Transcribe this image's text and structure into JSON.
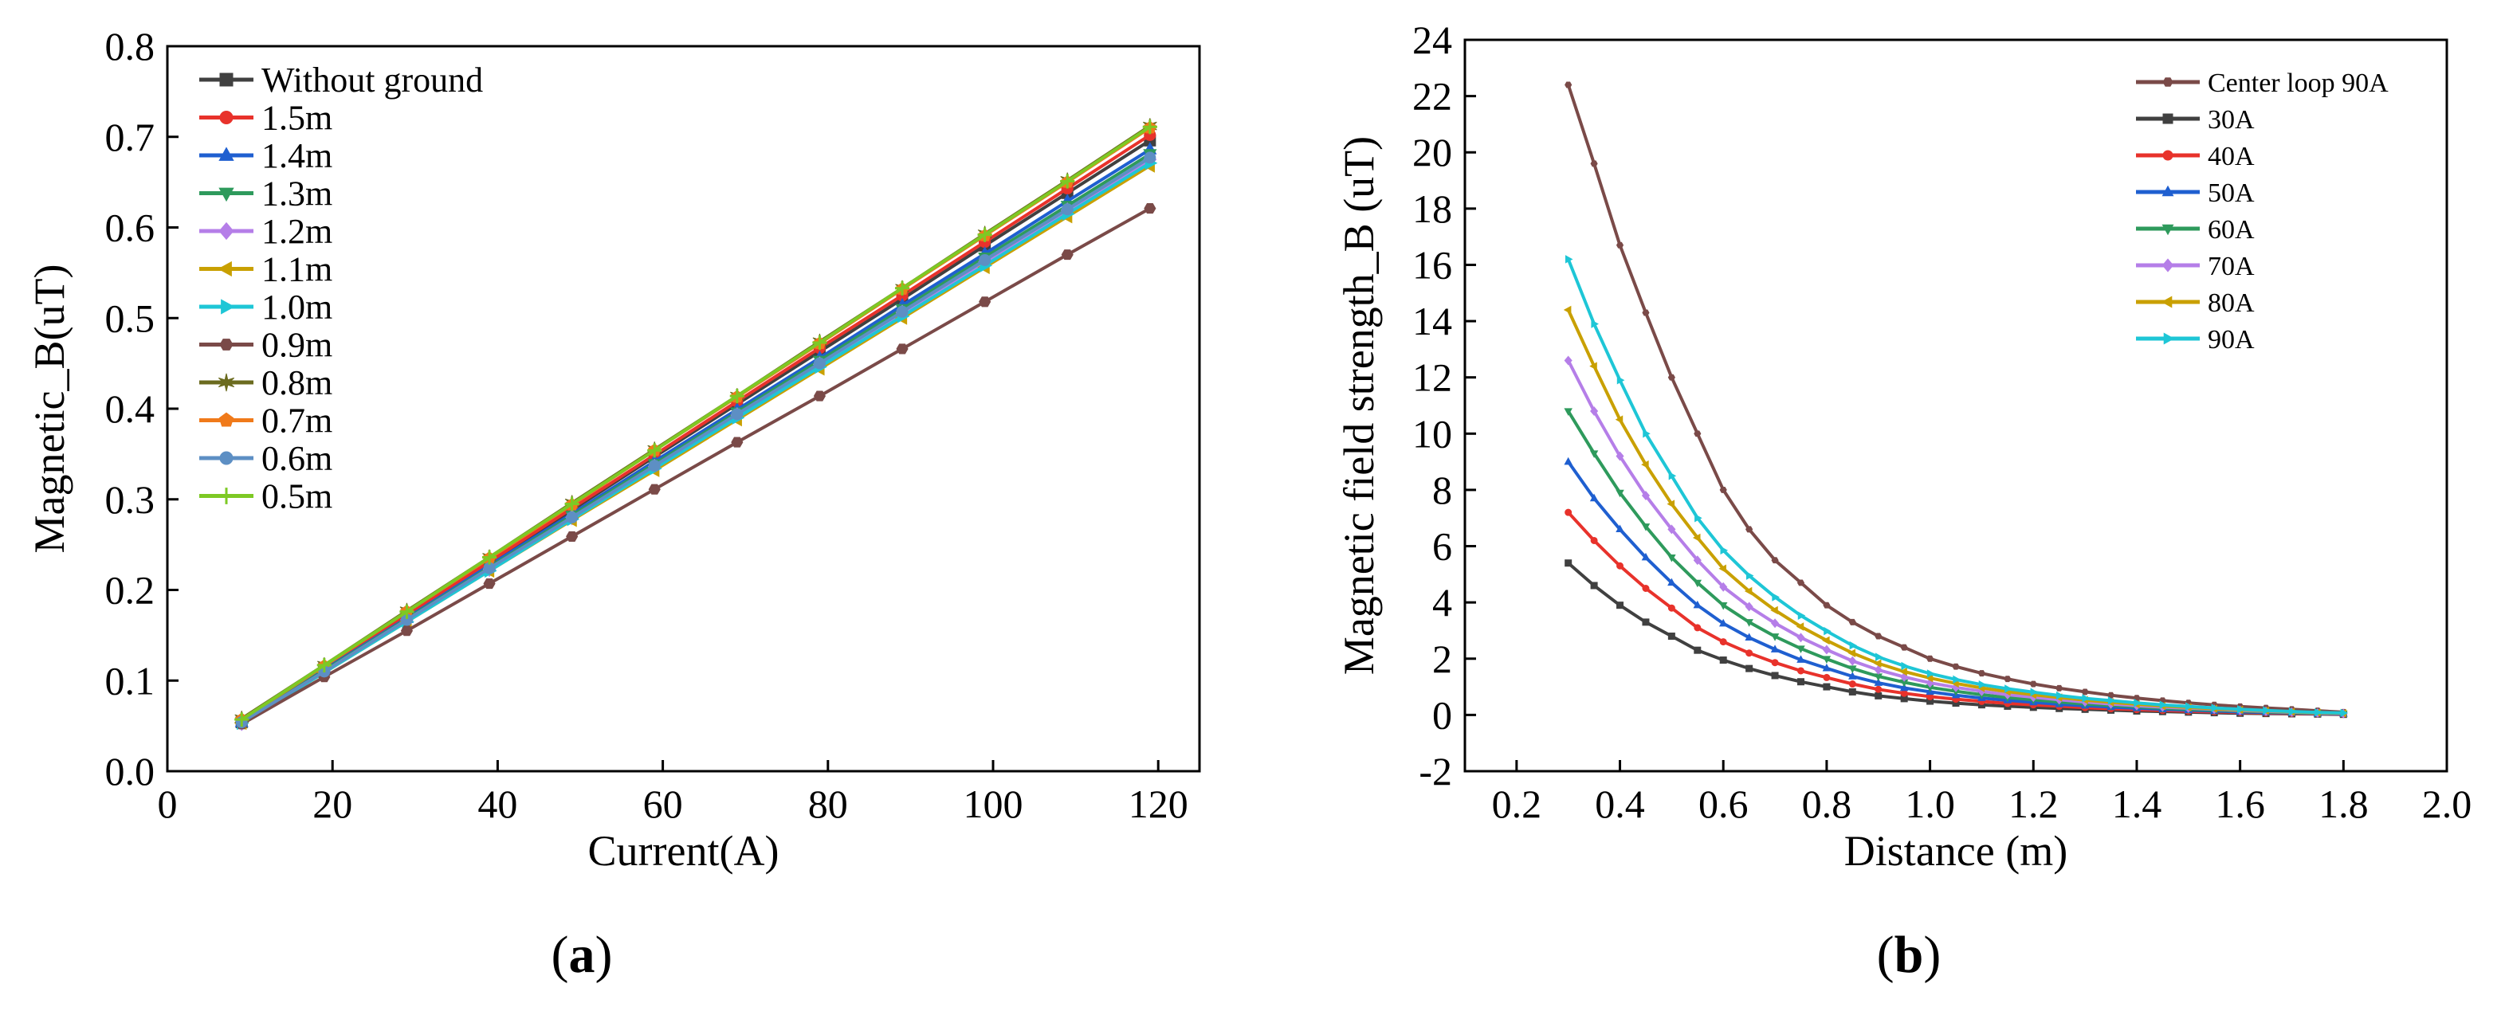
{
  "figure_labels": {
    "a": "a",
    "b": "b",
    "open_paren": "(",
    "close_paren": ")"
  },
  "chart_data": [
    {
      "type": "line",
      "panel": "a",
      "xlabel": "Current(A)",
      "ylabel": "Magnetic_B(uT)",
      "xlim": [
        0,
        125
      ],
      "ylim": [
        0,
        0.8
      ],
      "xticks": [
        0,
        20,
        40,
        60,
        80,
        100,
        120
      ],
      "yticks": [
        0.0,
        0.1,
        0.2,
        0.3,
        0.4,
        0.5,
        0.6,
        0.7,
        0.8
      ],
      "ytick_labels": [
        "0.0",
        "0.1",
        "0.2",
        "0.3",
        "0.4",
        "0.5",
        "0.6",
        "0.7",
        "0.8"
      ],
      "legend_position": "top-left",
      "x": [
        9,
        19,
        29,
        39,
        49,
        59,
        69,
        79,
        89,
        99,
        109,
        119
      ],
      "series": [
        {
          "name": "Without ground",
          "color": "#404040",
          "marker": "square",
          "values": [
            0.054,
            0.113,
            0.171,
            0.23,
            0.288,
            0.347,
            0.405,
            0.463,
            0.521,
            0.58,
            0.638,
            0.696
          ]
        },
        {
          "name": "1.5m",
          "color": "#e8322b",
          "marker": "circle",
          "values": [
            0.055,
            0.114,
            0.172,
            0.231,
            0.29,
            0.349,
            0.408,
            0.467,
            0.525,
            0.584,
            0.643,
            0.702
          ]
        },
        {
          "name": "1.4m",
          "color": "#1f5fd0",
          "marker": "triangle-up",
          "values": [
            0.054,
            0.112,
            0.169,
            0.227,
            0.284,
            0.342,
            0.399,
            0.456,
            0.514,
            0.571,
            0.629,
            0.686
          ]
        },
        {
          "name": "1.3m",
          "color": "#2e9a5c",
          "marker": "triangle-down",
          "values": [
            0.054,
            0.111,
            0.168,
            0.225,
            0.282,
            0.339,
            0.396,
            0.453,
            0.51,
            0.567,
            0.624,
            0.681
          ]
        },
        {
          "name": "1.2m",
          "color": "#b57ee8",
          "marker": "diamond",
          "values": [
            0.053,
            0.11,
            0.167,
            0.223,
            0.28,
            0.336,
            0.393,
            0.449,
            0.506,
            0.562,
            0.619,
            0.675
          ]
        },
        {
          "name": "1.1m",
          "color": "#c9a000",
          "marker": "triangle-left",
          "values": [
            0.053,
            0.109,
            0.165,
            0.221,
            0.277,
            0.332,
            0.388,
            0.444,
            0.5,
            0.556,
            0.612,
            0.668
          ]
        },
        {
          "name": "1.0m",
          "color": "#1ec6d6",
          "marker": "triangle-right",
          "values": [
            0.053,
            0.109,
            0.165,
            0.221,
            0.278,
            0.334,
            0.39,
            0.446,
            0.502,
            0.558,
            0.615,
            0.671
          ]
        },
        {
          "name": "0.9m",
          "color": "#7a4a48",
          "marker": "hexagon",
          "values": [
            0.052,
            0.104,
            0.155,
            0.207,
            0.259,
            0.311,
            0.363,
            0.414,
            0.466,
            0.518,
            0.57,
            0.621
          ]
        },
        {
          "name": "0.8m",
          "color": "#6b6b1f",
          "marker": "star",
          "values": [
            0.058,
            0.117,
            0.177,
            0.236,
            0.296,
            0.355,
            0.414,
            0.474,
            0.533,
            0.593,
            0.652,
            0.712
          ]
        },
        {
          "name": "0.7m",
          "color": "#f07a1a",
          "marker": "pentagon",
          "values": [
            0.057,
            0.116,
            0.176,
            0.235,
            0.294,
            0.354,
            0.413,
            0.472,
            0.532,
            0.591,
            0.65,
            0.71
          ]
        },
        {
          "name": "0.6m",
          "color": "#5d8fc4",
          "marker": "circle",
          "values": [
            0.054,
            0.11,
            0.167,
            0.224,
            0.28,
            0.337,
            0.394,
            0.45,
            0.507,
            0.564,
            0.62,
            0.677
          ]
        },
        {
          "name": "0.5m",
          "color": "#7dc924",
          "marker": "plus",
          "values": [
            0.057,
            0.117,
            0.176,
            0.236,
            0.295,
            0.354,
            0.414,
            0.473,
            0.533,
            0.592,
            0.651,
            0.711
          ]
        }
      ]
    },
    {
      "type": "line",
      "panel": "b",
      "xlabel": "Distance (m)",
      "ylabel": "Magnetic field strength_B (uT)",
      "xlim": [
        0.1,
        2.0
      ],
      "ylim": [
        -2,
        24
      ],
      "xticks": [
        0.2,
        0.4,
        0.6,
        0.8,
        1.0,
        1.2,
        1.4,
        1.6,
        1.8,
        2.0
      ],
      "xtick_labels": [
        "0.2",
        "0.4",
        "0.6",
        "0.8",
        "1.0",
        "1.2",
        "1.4",
        "1.6",
        "1.8",
        "2.0"
      ],
      "yticks": [
        -2,
        0,
        2,
        4,
        6,
        8,
        10,
        12,
        14,
        16,
        18,
        20,
        22,
        24
      ],
      "legend_position": "top-right",
      "x": [
        0.3,
        0.35,
        0.4,
        0.45,
        0.5,
        0.55,
        0.6,
        0.65,
        0.7,
        0.75,
        0.8,
        0.85,
        0.9,
        0.95,
        1.0,
        1.05,
        1.1,
        1.15,
        1.2,
        1.25,
        1.3,
        1.35,
        1.4,
        1.45,
        1.5,
        1.55,
        1.6,
        1.65,
        1.7,
        1.75,
        1.8
      ],
      "series": [
        {
          "name": "Center loop 90A",
          "color": "#7a4a48",
          "marker": "hexagon",
          "values": [
            22.4,
            19.6,
            16.7,
            14.3,
            12.0,
            10.0,
            8.0,
            6.6,
            5.5,
            4.7,
            3.9,
            3.3,
            2.8,
            2.4,
            2.0,
            1.72,
            1.48,
            1.28,
            1.1,
            0.95,
            0.82,
            0.7,
            0.6,
            0.51,
            0.43,
            0.36,
            0.3,
            0.25,
            0.2,
            0.15,
            0.1
          ]
        },
        {
          "name": "30A",
          "color": "#404040",
          "marker": "square",
          "values": [
            5.4,
            4.6,
            3.9,
            3.3,
            2.8,
            2.3,
            1.95,
            1.65,
            1.4,
            1.18,
            1.0,
            0.82,
            0.68,
            0.58,
            0.49,
            0.42,
            0.36,
            0.31,
            0.27,
            0.23,
            0.2,
            0.17,
            0.14,
            0.12,
            0.1,
            0.08,
            0.06,
            0.05,
            0.04,
            0.03,
            0.02
          ]
        },
        {
          "name": "40A",
          "color": "#e8322b",
          "marker": "circle",
          "values": [
            7.2,
            6.2,
            5.3,
            4.5,
            3.8,
            3.1,
            2.6,
            2.2,
            1.86,
            1.57,
            1.33,
            1.1,
            0.91,
            0.77,
            0.65,
            0.56,
            0.48,
            0.41,
            0.36,
            0.31,
            0.26,
            0.22,
            0.19,
            0.16,
            0.13,
            0.11,
            0.09,
            0.07,
            0.05,
            0.04,
            0.03
          ]
        },
        {
          "name": "50A",
          "color": "#1f5fd0",
          "marker": "triangle-up",
          "values": [
            9.0,
            7.7,
            6.6,
            5.6,
            4.7,
            3.9,
            3.25,
            2.75,
            2.33,
            1.96,
            1.66,
            1.37,
            1.14,
            0.96,
            0.82,
            0.7,
            0.6,
            0.52,
            0.45,
            0.38,
            0.33,
            0.28,
            0.24,
            0.2,
            0.17,
            0.14,
            0.11,
            0.09,
            0.07,
            0.05,
            0.04
          ]
        },
        {
          "name": "60A",
          "color": "#2e9a5c",
          "marker": "triangle-down",
          "values": [
            10.8,
            9.3,
            7.9,
            6.7,
            5.6,
            4.7,
            3.9,
            3.3,
            2.79,
            2.36,
            1.99,
            1.65,
            1.37,
            1.16,
            0.98,
            0.84,
            0.72,
            0.62,
            0.54,
            0.46,
            0.39,
            0.34,
            0.29,
            0.24,
            0.2,
            0.17,
            0.14,
            0.11,
            0.08,
            0.06,
            0.05
          ]
        },
        {
          "name": "70A",
          "color": "#b57ee8",
          "marker": "diamond",
          "values": [
            12.6,
            10.8,
            9.2,
            7.8,
            6.6,
            5.5,
            4.55,
            3.85,
            3.26,
            2.75,
            2.32,
            1.92,
            1.6,
            1.35,
            1.14,
            0.98,
            0.84,
            0.72,
            0.63,
            0.54,
            0.46,
            0.39,
            0.33,
            0.28,
            0.24,
            0.2,
            0.16,
            0.13,
            0.1,
            0.07,
            0.05
          ]
        },
        {
          "name": "80A",
          "color": "#c9a000",
          "marker": "triangle-left",
          "values": [
            14.4,
            12.4,
            10.5,
            8.9,
            7.5,
            6.3,
            5.2,
            4.4,
            3.72,
            3.14,
            2.65,
            2.2,
            1.83,
            1.54,
            1.31,
            1.12,
            0.96,
            0.83,
            0.72,
            0.62,
            0.53,
            0.45,
            0.38,
            0.32,
            0.27,
            0.22,
            0.18,
            0.15,
            0.11,
            0.08,
            0.06
          ]
        },
        {
          "name": "90A",
          "color": "#1ec6d6",
          "marker": "triangle-right",
          "values": [
            16.2,
            13.9,
            11.9,
            10.0,
            8.5,
            7.0,
            5.85,
            4.95,
            4.19,
            3.53,
            2.98,
            2.47,
            2.06,
            1.74,
            1.47,
            1.26,
            1.08,
            0.93,
            0.81,
            0.69,
            0.59,
            0.51,
            0.43,
            0.36,
            0.3,
            0.25,
            0.2,
            0.16,
            0.12,
            0.09,
            0.07
          ]
        }
      ]
    }
  ]
}
